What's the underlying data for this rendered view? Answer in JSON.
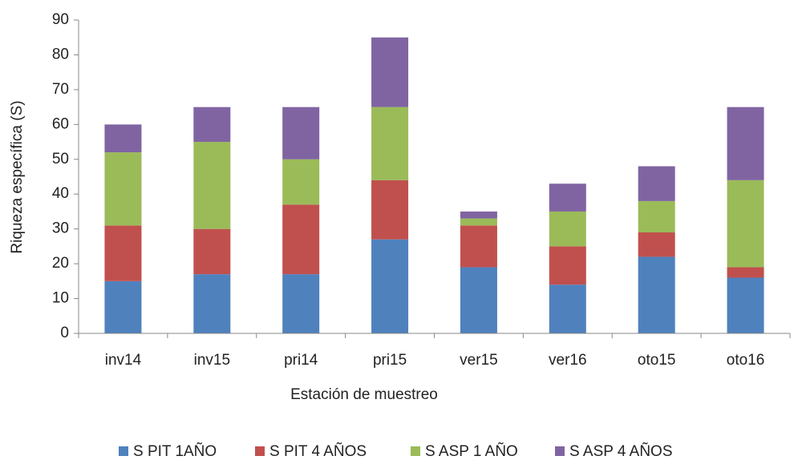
{
  "chart_data": {
    "type": "stacked_bar",
    "x_label": "Estación de muestreo",
    "y_label": "Riqueza específica (S)",
    "categories": [
      "inv14",
      "inv15",
      "pri14",
      "pri15",
      "ver15",
      "ver16",
      "oto15",
      "oto16"
    ],
    "series": [
      {
        "name": "S PIT 1AÑO",
        "color": "#4f81bd",
        "values": [
          15,
          17,
          17,
          27,
          19,
          14,
          22,
          16
        ]
      },
      {
        "name": "S PIT 4 AÑOS",
        "color": "#c0504d",
        "values": [
          16,
          13,
          20,
          17,
          12,
          11,
          7,
          3
        ]
      },
      {
        "name": "S ASP 1 AÑO",
        "color": "#9bbb59",
        "values": [
          21,
          25,
          13,
          21,
          2,
          10,
          9,
          25
        ]
      },
      {
        "name": "S ASP 4 AÑOS",
        "color": "#8064a2",
        "values": [
          8,
          10,
          15,
          20,
          2,
          8,
          10,
          21
        ]
      }
    ],
    "ylim": [
      0,
      90
    ],
    "yticks": [
      0,
      10,
      20,
      30,
      40,
      50,
      60,
      70,
      80,
      90
    ],
    "grid": false,
    "legend": "bottom"
  }
}
